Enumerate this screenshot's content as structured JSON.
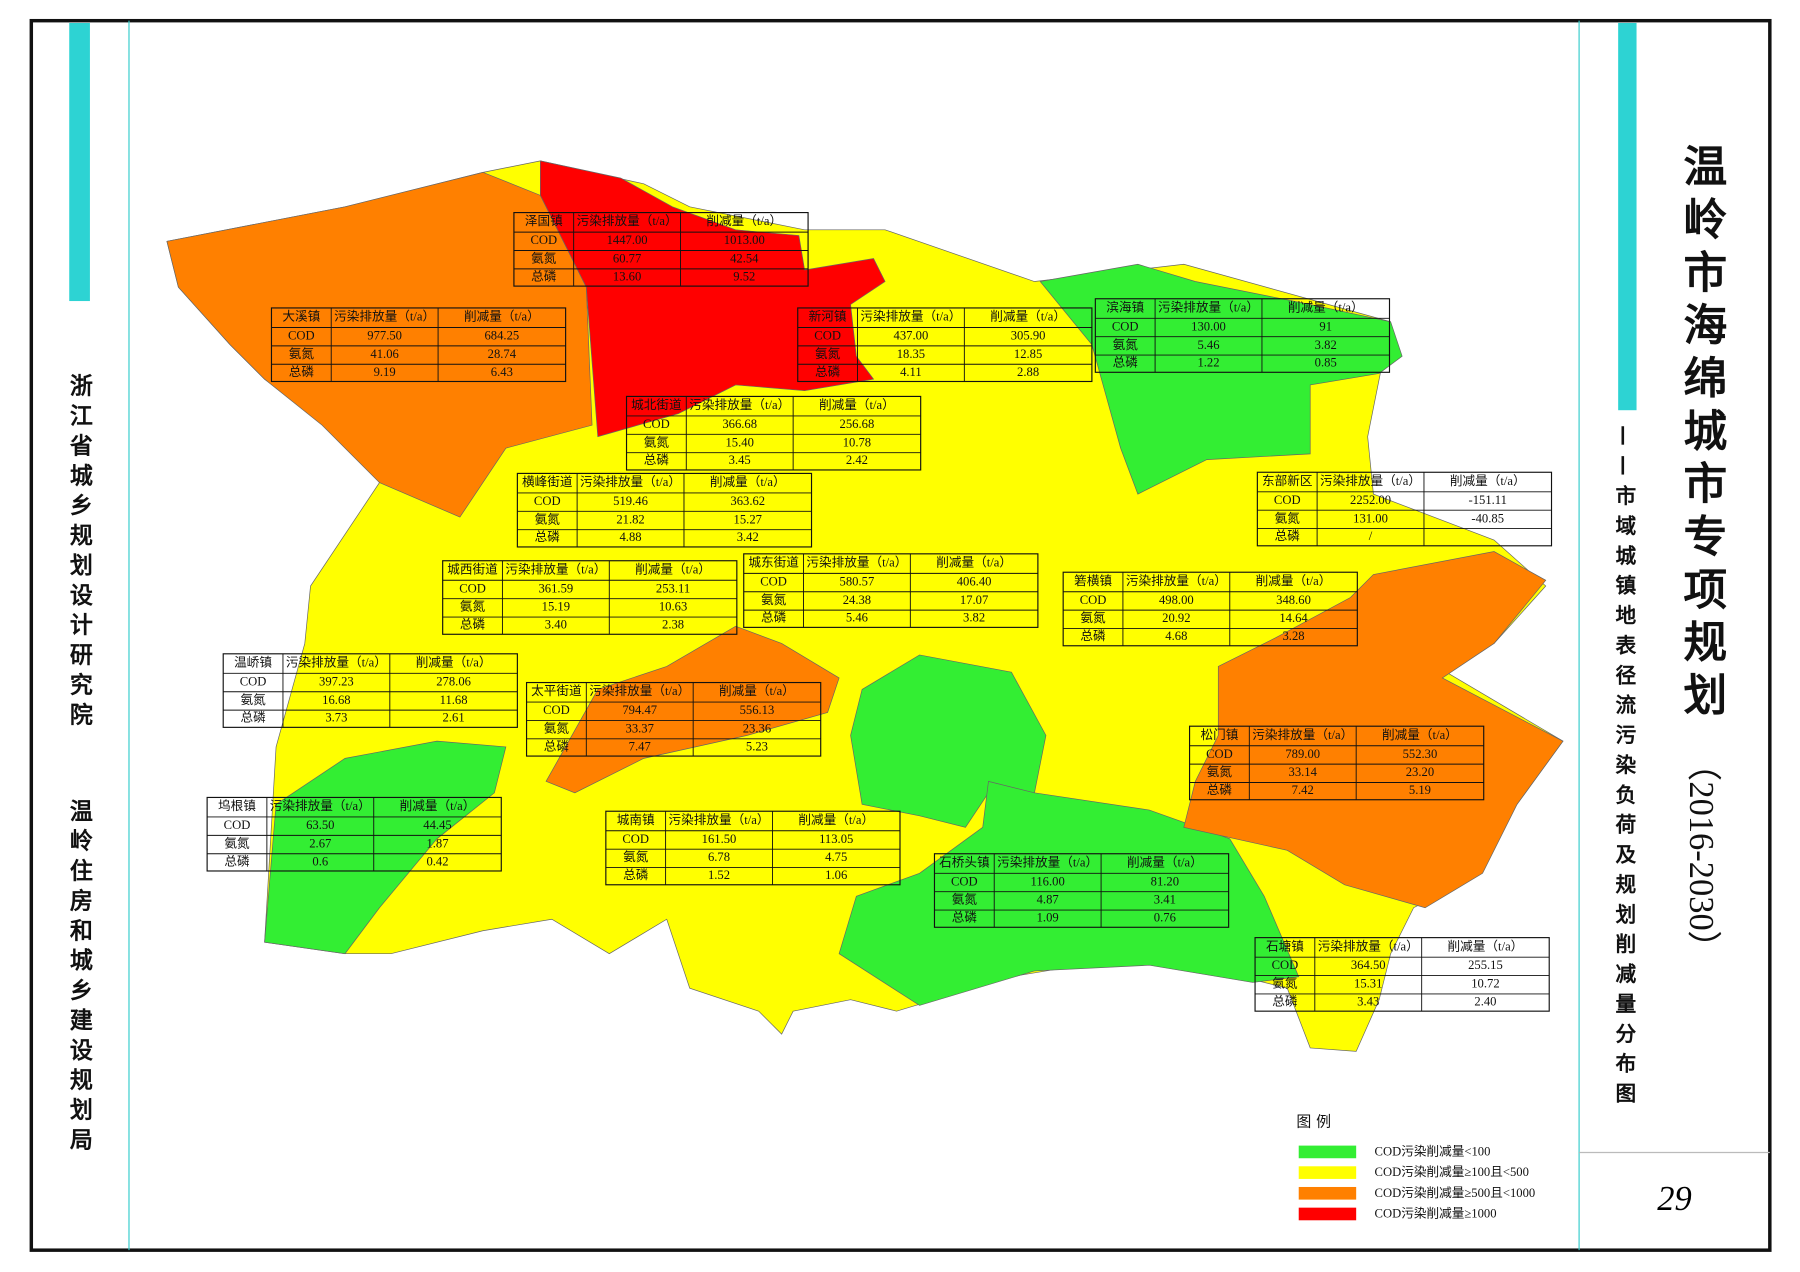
{
  "title": "温岭市海绵城市专项规划",
  "title_years": "（2016-2030）",
  "subtitle": "——市域城镇地表径流污染负荷及规划削减量分布图",
  "left_orgs": [
    "浙江省城乡规划设计研究院",
    "温岭住房和城乡建设规划局"
  ],
  "page_number": "29",
  "table_headers": [
    "污染排放量（t/a）",
    "削减量（t/a）"
  ],
  "row_labels": [
    "COD",
    "氨氮",
    "总磷"
  ],
  "towns": [
    {
      "name": "泽国镇",
      "rows": [
        [
          "1447.00",
          "1013.00"
        ],
        [
          "60.77",
          "42.54"
        ],
        [
          "13.60",
          "9.52"
        ]
      ]
    },
    {
      "name": "大溪镇",
      "rows": [
        [
          "977.50",
          "684.25"
        ],
        [
          "41.06",
          "28.74"
        ],
        [
          "9.19",
          "6.43"
        ]
      ]
    },
    {
      "name": "新河镇",
      "rows": [
        [
          "437.00",
          "305.90"
        ],
        [
          "18.35",
          "12.85"
        ],
        [
          "4.11",
          "2.88"
        ]
      ]
    },
    {
      "name": "滨海镇",
      "rows": [
        [
          "130.00",
          "91"
        ],
        [
          "5.46",
          "3.82"
        ],
        [
          "1.22",
          "0.85"
        ]
      ]
    },
    {
      "name": "城北街道",
      "rows": [
        [
          "366.68",
          "256.68"
        ],
        [
          "15.40",
          "10.78"
        ],
        [
          "3.45",
          "2.42"
        ]
      ]
    },
    {
      "name": "横峰街道",
      "rows": [
        [
          "519.46",
          "363.62"
        ],
        [
          "21.82",
          "15.27"
        ],
        [
          "4.88",
          "3.42"
        ]
      ]
    },
    {
      "name": "东部新区",
      "rows": [
        [
          "2252.00",
          "-151.11"
        ],
        [
          "131.00",
          "-40.85"
        ],
        [
          "/",
          null
        ]
      ]
    },
    {
      "name": "城西街道",
      "rows": [
        [
          "361.59",
          "253.11"
        ],
        [
          "15.19",
          "10.63"
        ],
        [
          "3.40",
          "2.38"
        ]
      ]
    },
    {
      "name": "城东街道",
      "rows": [
        [
          "580.57",
          "406.40"
        ],
        [
          "24.38",
          "17.07"
        ],
        [
          "5.46",
          "3.82"
        ]
      ]
    },
    {
      "name": "箬横镇",
      "rows": [
        [
          "498.00",
          "348.60"
        ],
        [
          "20.92",
          "14.64"
        ],
        [
          "4.68",
          "3.28"
        ]
      ]
    },
    {
      "name": "温峤镇",
      "rows": [
        [
          "397.23",
          "278.06"
        ],
        [
          "16.68",
          "11.68"
        ],
        [
          "3.73",
          "2.61"
        ]
      ]
    },
    {
      "name": "太平街道",
      "rows": [
        [
          "794.47",
          "556.13"
        ],
        [
          "33.37",
          "23.36"
        ],
        [
          "7.47",
          "5.23"
        ]
      ]
    },
    {
      "name": "松门镇",
      "rows": [
        [
          "789.00",
          "552.30"
        ],
        [
          "33.14",
          "23.20"
        ],
        [
          "7.42",
          "5.19"
        ]
      ]
    },
    {
      "name": "坞根镇",
      "rows": [
        [
          "63.50",
          "44.45"
        ],
        [
          "2.67",
          "1.87"
        ],
        [
          "0.6",
          "0.42"
        ]
      ]
    },
    {
      "name": "城南镇",
      "rows": [
        [
          "161.50",
          "113.05"
        ],
        [
          "6.78",
          "4.75"
        ],
        [
          "1.52",
          "1.06"
        ]
      ]
    },
    {
      "name": "石桥头镇",
      "rows": [
        [
          "116.00",
          "81.20"
        ],
        [
          "4.87",
          "3.41"
        ],
        [
          "1.09",
          "0.76"
        ]
      ]
    },
    {
      "name": "石塘镇",
      "rows": [
        [
          "364.50",
          "255.15"
        ],
        [
          "15.31",
          "10.72"
        ],
        [
          "3.43",
          "2.40"
        ]
      ]
    }
  ],
  "legend": {
    "title": "图 例",
    "items": [
      {
        "label": "COD污染削减量<100",
        "color": "#33ee33"
      },
      {
        "label": "COD污染削减量≥100且<500",
        "color": "#ffff00"
      },
      {
        "label": "COD污染削减量≥500且<1000",
        "color": "#ff8000"
      },
      {
        "label": "COD污染削减量≥1000",
        "color": "#ff0000"
      }
    ]
  }
}
